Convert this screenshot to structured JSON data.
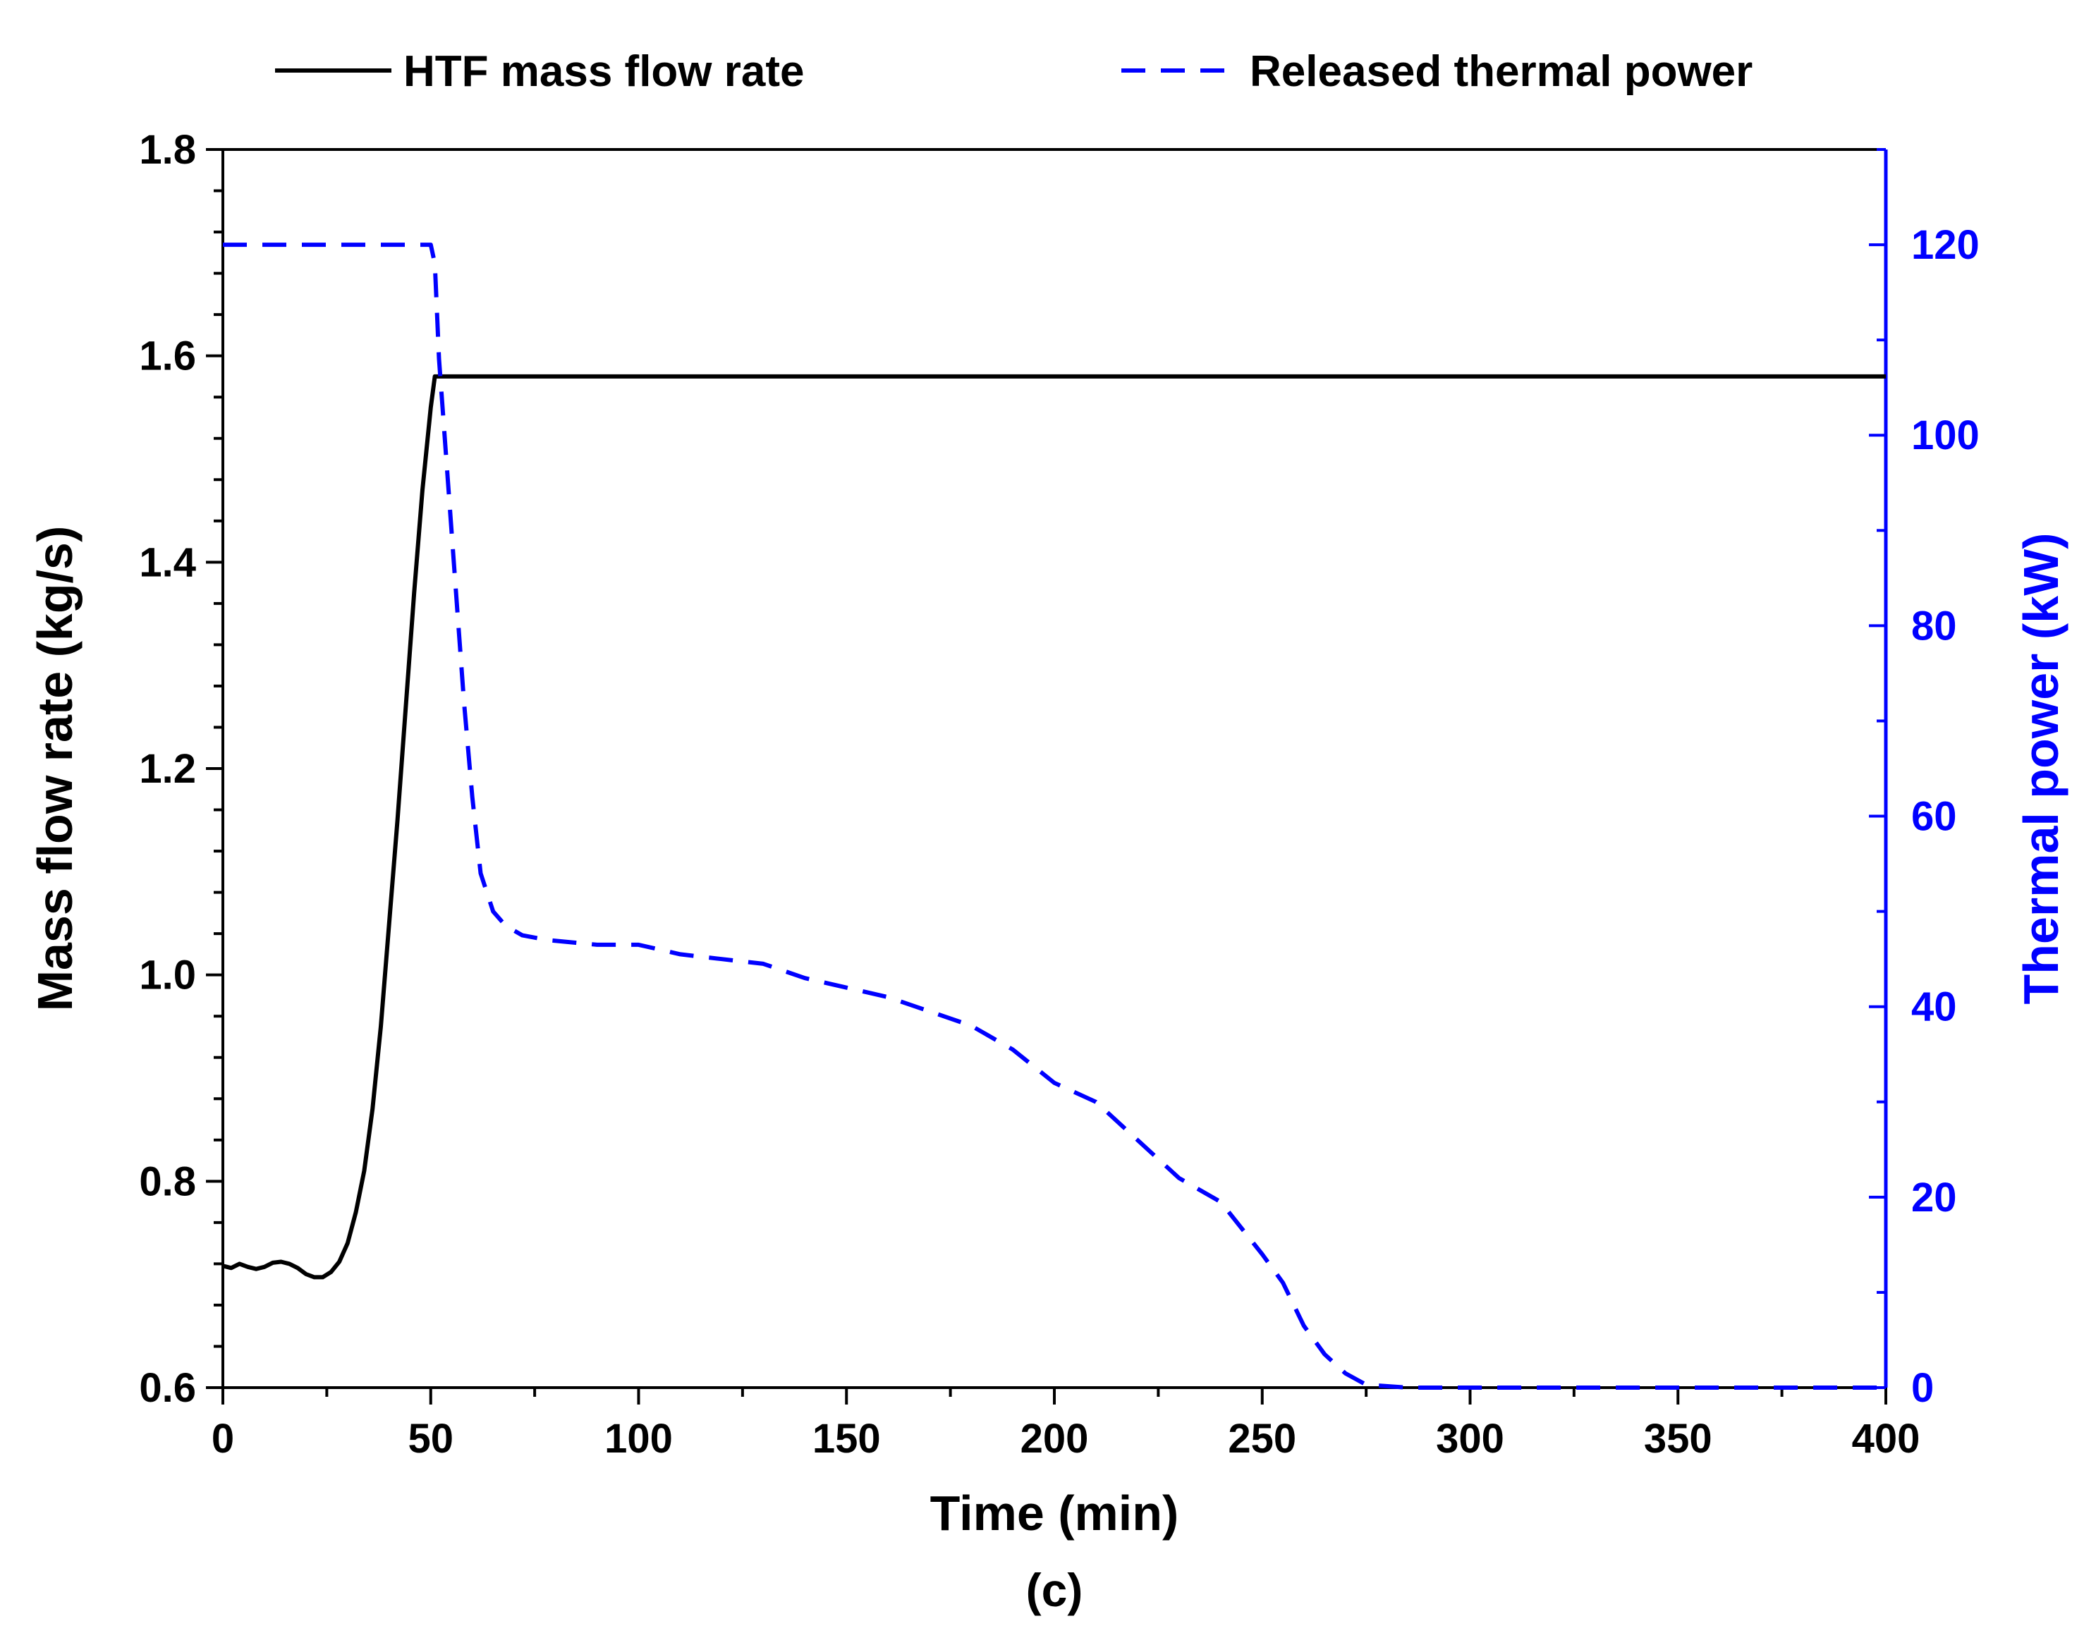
{
  "chart_data": {
    "type": "line",
    "caption": "(c)",
    "x_axis": {
      "label": "Time (min)",
      "range": [
        0,
        400
      ],
      "ticks": [
        0,
        50,
        100,
        150,
        200,
        250,
        300,
        350,
        400
      ],
      "tick_labels": [
        "0",
        "50",
        "100",
        "150",
        "200",
        "250",
        "300",
        "350",
        "400"
      ]
    },
    "y_left": {
      "label": "Mass flow rate (kg/s)",
      "range": [
        0.6,
        1.8
      ],
      "ticks": [
        0.6,
        0.8,
        1.0,
        1.2,
        1.4,
        1.6,
        1.8
      ],
      "tick_labels": [
        "0.6",
        "0.8",
        "1.0",
        "1.2",
        "1.4",
        "1.6",
        "1.8"
      ],
      "color": "#000000"
    },
    "y_right": {
      "label": "Thermal power (kW)",
      "range": [
        0,
        130
      ],
      "ticks": [
        0,
        20,
        40,
        60,
        80,
        100,
        120
      ],
      "tick_labels": [
        "0",
        "20",
        "40",
        "60",
        "80",
        "100",
        "120"
      ],
      "color": "#0000ff"
    },
    "legend": {
      "placement": "top",
      "entries": [
        {
          "label": "HTF mass flow rate",
          "style": "solid",
          "color": "#000000"
        },
        {
          "label": "Released thermal power",
          "style": "dashed",
          "color": "#0000ff"
        }
      ]
    },
    "series": [
      {
        "name": "HTF mass flow rate",
        "axis": "left",
        "color": "#000000",
        "style": "solid",
        "x": [
          0,
          2,
          4,
          6,
          8,
          10,
          12,
          14,
          16,
          18,
          20,
          22,
          24,
          26,
          28,
          30,
          32,
          34,
          36,
          38,
          40,
          42,
          44,
          46,
          48,
          50,
          51,
          52,
          54,
          60,
          100,
          150,
          200,
          250,
          300,
          350,
          400
        ],
        "y": [
          0.718,
          0.716,
          0.72,
          0.717,
          0.715,
          0.717,
          0.721,
          0.722,
          0.72,
          0.716,
          0.71,
          0.707,
          0.707,
          0.712,
          0.722,
          0.74,
          0.77,
          0.81,
          0.87,
          0.95,
          1.05,
          1.15,
          1.26,
          1.37,
          1.47,
          1.55,
          1.58,
          1.58,
          1.58,
          1.58,
          1.58,
          1.58,
          1.58,
          1.58,
          1.58,
          1.58,
          1.58
        ]
      },
      {
        "name": "Released thermal power",
        "axis": "right",
        "color": "#0000ff",
        "style": "dashed",
        "x": [
          0,
          20,
          40,
          50,
          51,
          52,
          55,
          58,
          60,
          62,
          65,
          68,
          72,
          78,
          90,
          100,
          105,
          110,
          120,
          130,
          140,
          150,
          160,
          170,
          180,
          190,
          200,
          210,
          220,
          230,
          240,
          250,
          255,
          260,
          265,
          270,
          275,
          285,
          300,
          350,
          400
        ],
        "y": [
          120,
          120,
          120,
          120,
          118,
          108,
          90,
          72,
          62,
          54,
          50,
          48.5,
          47.5,
          47,
          46.5,
          46.5,
          46,
          45.5,
          45,
          44.5,
          43,
          42,
          41,
          39.5,
          38,
          35.5,
          32,
          30,
          26,
          22,
          19.5,
          14,
          11,
          6.5,
          3.5,
          1.5,
          0.3,
          0,
          0,
          0,
          0
        ]
      }
    ]
  }
}
